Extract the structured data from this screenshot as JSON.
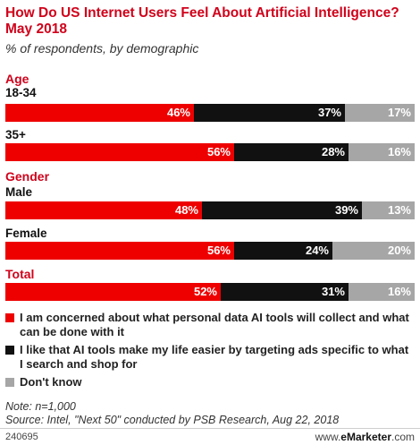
{
  "header": {
    "title": "How Do US Internet Users Feel About Artificial Intelligence? May 2018",
    "subtitle": "% of respondents, by demographic"
  },
  "chart_data": {
    "type": "bar",
    "orientation": "horizontal",
    "stacked": true,
    "percent_stacked": true,
    "title": "How Do US Internet Users Feel About Artificial Intelligence? May 2018",
    "subtitle": "% of respondents, by demographic",
    "groups": [
      {
        "label": "Age",
        "rows": [
          {
            "label": "18-34",
            "values": [
              46,
              37,
              17
            ]
          },
          {
            "label": "35+",
            "values": [
              56,
              28,
              16
            ]
          }
        ]
      },
      {
        "label": "Gender",
        "rows": [
          {
            "label": "Male",
            "values": [
              48,
              39,
              13
            ]
          },
          {
            "label": "Female",
            "values": [
              56,
              24,
              20
            ]
          }
        ]
      },
      {
        "label": "Total",
        "rows": [
          {
            "label": "",
            "values": [
              52,
              31,
              16
            ]
          }
        ]
      }
    ],
    "series": [
      {
        "name": "I am concerned about what personal data AI tools will collect and what can be done with it",
        "color": "#ee0000"
      },
      {
        "name": "I like that AI tools make my life easier by targeting ads specific to what I search and shop for",
        "color": "#111111"
      },
      {
        "name": "Don't know",
        "color": "#a6a6a6"
      }
    ],
    "value_suffix": "%",
    "legend_position": "bottom"
  },
  "notes": {
    "note": "Note: n=1,000",
    "source": "Source: Intel, \"Next 50\" conducted by PSB Research, Aug 22, 2018"
  },
  "footer": {
    "id": "240695",
    "brand_prefix": "www.",
    "brand_name": "eMarketer",
    "brand_suffix": ".com"
  }
}
